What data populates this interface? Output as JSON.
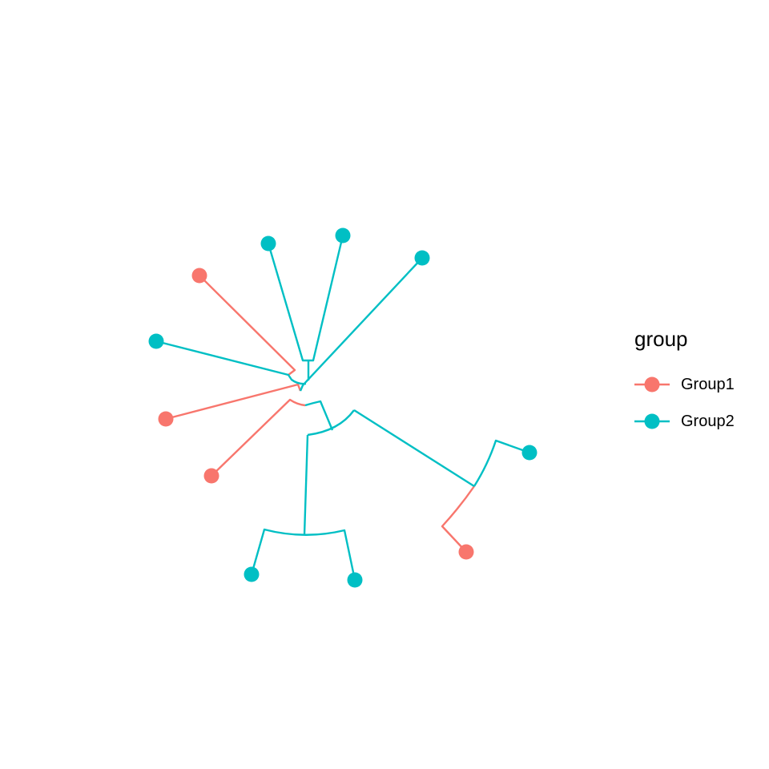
{
  "chart_data": {
    "type": "tree",
    "layout": "unrooted-circular",
    "legend": {
      "title": "group",
      "placement": "right",
      "entries": [
        {
          "label": "Group1",
          "color": "#F8766D"
        },
        {
          "label": "Group2",
          "color": "#00BFC4"
        }
      ]
    },
    "tips": [
      {
        "group": "Group1"
      },
      {
        "group": "Group1"
      },
      {
        "group": "Group1"
      },
      {
        "group": "Group1"
      },
      {
        "group": "Group2"
      },
      {
        "group": "Group2"
      },
      {
        "group": "Group2"
      },
      {
        "group": "Group2"
      },
      {
        "group": "Group2"
      },
      {
        "group": "Group2"
      },
      {
        "group": "Group2"
      }
    ],
    "grid": false,
    "axes": false
  }
}
